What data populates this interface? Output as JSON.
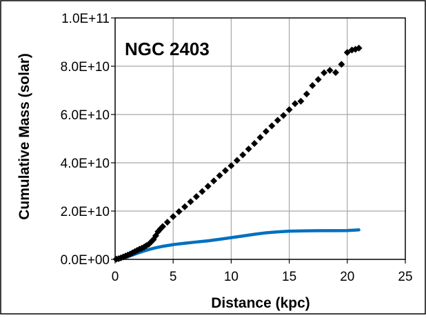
{
  "chart_data": {
    "type": "scatter",
    "title": "",
    "annotation": "NGC 2403",
    "xlabel": "Distance  (kpc)",
    "ylabel": "Cumulative Mass  (solar)",
    "xlim": [
      0,
      25
    ],
    "ylim": [
      0,
      100000000000
    ],
    "x_ticks": [
      0,
      5,
      10,
      15,
      20,
      25
    ],
    "x_tick_labels": [
      "0",
      "5",
      "10",
      "15",
      "20",
      "25"
    ],
    "y_ticks": [
      0,
      20000000000,
      40000000000,
      60000000000,
      80000000000,
      100000000000
    ],
    "y_tick_labels": [
      "0.0E+00",
      "2.0E+10",
      "4.0E+10",
      "6.0E+10",
      "8.0E+10",
      "1.0E+11"
    ],
    "grid": true,
    "legend": "none",
    "colors": {
      "markers": "#000000",
      "curve": "#0070c0",
      "grid": "#a6a6a6",
      "axes": "#000000"
    },
    "series": [
      {
        "style": "markers",
        "x": [
          0.1,
          0.3,
          0.5,
          0.7,
          0.9,
          1.1,
          1.3,
          1.5,
          1.7,
          1.9,
          2.1,
          2.3,
          2.5,
          2.7,
          2.9,
          3.1,
          3.3,
          3.5,
          3.7,
          3.9,
          4.1,
          4.5,
          5.0,
          5.5,
          6.0,
          6.5,
          7.0,
          7.5,
          8.0,
          8.5,
          9.0,
          9.5,
          10.0,
          10.5,
          11.0,
          11.5,
          12.0,
          12.5,
          13.0,
          13.5,
          14.0,
          14.5,
          15.0,
          15.5,
          16.0,
          16.5,
          17.0,
          17.5,
          18.0,
          18.5,
          19.0,
          19.5,
          20.0,
          20.4,
          20.7,
          21.0
        ],
        "y": [
          100000000,
          300000000,
          600000000,
          1000000000,
          1400000000,
          1800000000,
          2200000000,
          2700000000,
          3200000000,
          3700000000,
          4200000000,
          4600000000,
          5100000000,
          5700000000,
          6300000000,
          7200000000,
          8200000000,
          9800000000,
          11500000000,
          12600000000,
          13600000000,
          15400000000,
          17700000000,
          19800000000,
          21800000000,
          23900000000,
          26000000000,
          28100000000,
          30300000000,
          32500000000,
          34700000000,
          36800000000,
          38800000000,
          41000000000,
          43300000000,
          45700000000,
          48000000000,
          50500000000,
          53000000000,
          55300000000,
          57600000000,
          59600000000,
          62000000000,
          64500000000,
          65500000000,
          68500000000,
          72000000000,
          74500000000,
          77300000000,
          78300000000,
          77400000000,
          80800000000,
          85700000000,
          86700000000,
          87000000000,
          87500000000
        ]
      },
      {
        "style": "line",
        "x": [
          0,
          0.3,
          0.6,
          1.0,
          1.5,
          2.0,
          2.5,
          3.0,
          3.5,
          4.0,
          5.0,
          6.0,
          7.0,
          8.0,
          9.0,
          10.0,
          11.0,
          12.0,
          13.0,
          14.0,
          15.0,
          16.0,
          17.0,
          18.0,
          19.0,
          20.0,
          21.0
        ],
        "y": [
          0,
          150000000,
          450000000,
          1000000000,
          1800000000,
          2700000000,
          3500000000,
          4200000000,
          4800000000,
          5300000000,
          6100000000,
          6700000000,
          7200000000,
          7700000000,
          8300000000,
          9000000000,
          9700000000,
          10400000000,
          11000000000,
          11400000000,
          11700000000,
          11800000000,
          11850000000,
          11900000000,
          11900000000,
          11950000000,
          12200000000
        ]
      }
    ]
  }
}
